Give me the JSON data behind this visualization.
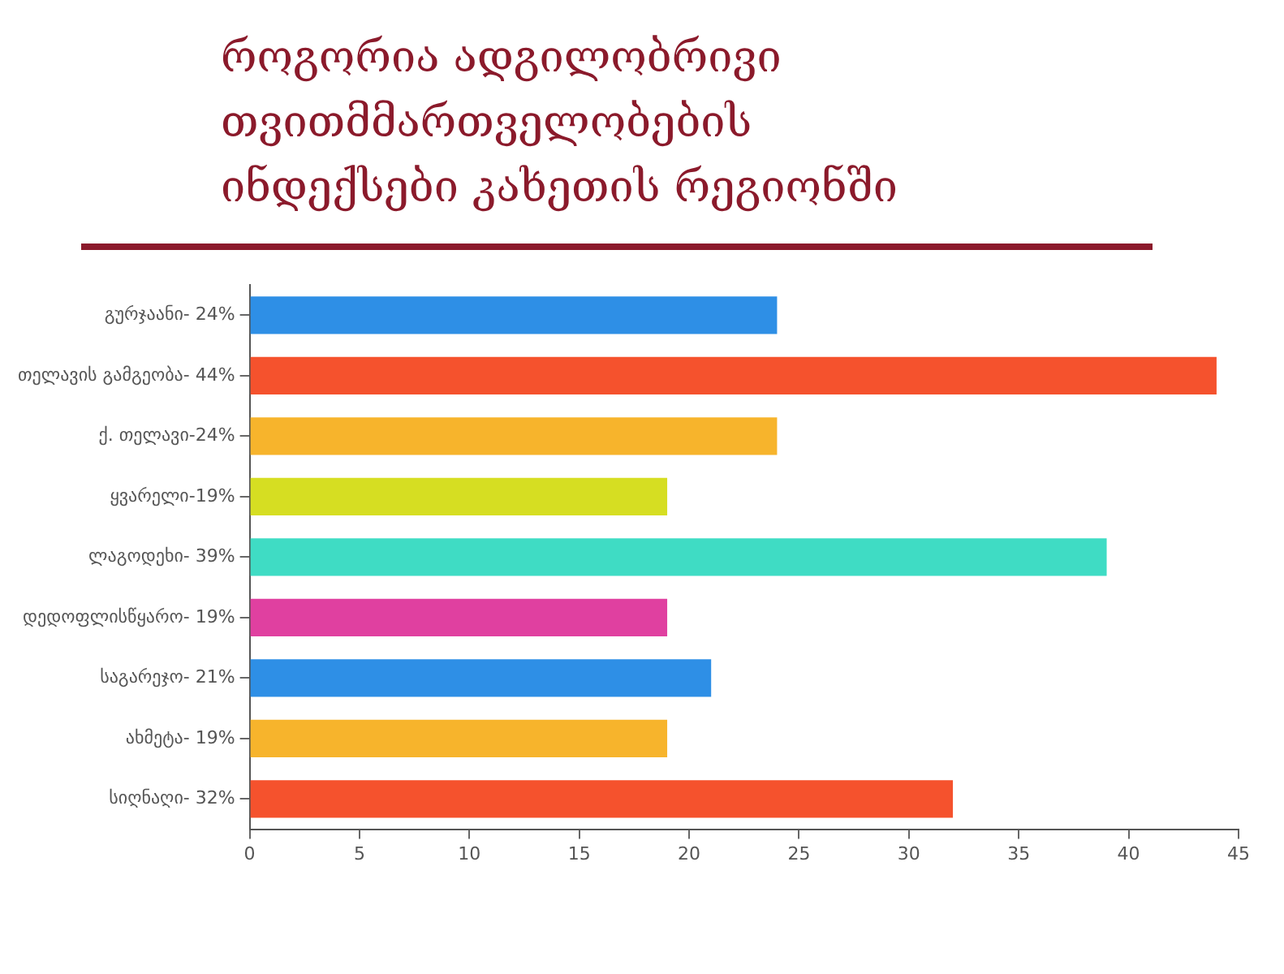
{
  "chart_data": {
    "type": "bar",
    "orientation": "horizontal",
    "title": "როგორია ადგილობრივი თვითმმართველობების ინდექსები კახეთის რეგიონში",
    "categories": [
      "გურჯაანი- 24%",
      "თელავის გამგეობა- 44%",
      "ქ. თელავი-24%",
      "ყვარელი-19%",
      "ლაგოდეხი- 39%",
      "დედოფლისწყარო- 19%",
      "საგარეჯო- 21%",
      "ახმეტა- 19%",
      "სიღნაღი- 32%"
    ],
    "values": [
      24,
      44,
      24,
      19,
      39,
      19,
      21,
      19,
      32
    ],
    "colors": [
      "#2e8fe6",
      "#f5522d",
      "#f7b42c",
      "#d6de22",
      "#3fdcc4",
      "#e040a0",
      "#2e8fe6",
      "#f7b42c",
      "#f5522d"
    ],
    "xlim": [
      0,
      45
    ],
    "xticks": [
      0,
      5,
      10,
      15,
      20,
      25,
      30,
      35,
      40,
      45
    ],
    "grid": false,
    "legend": false
  }
}
